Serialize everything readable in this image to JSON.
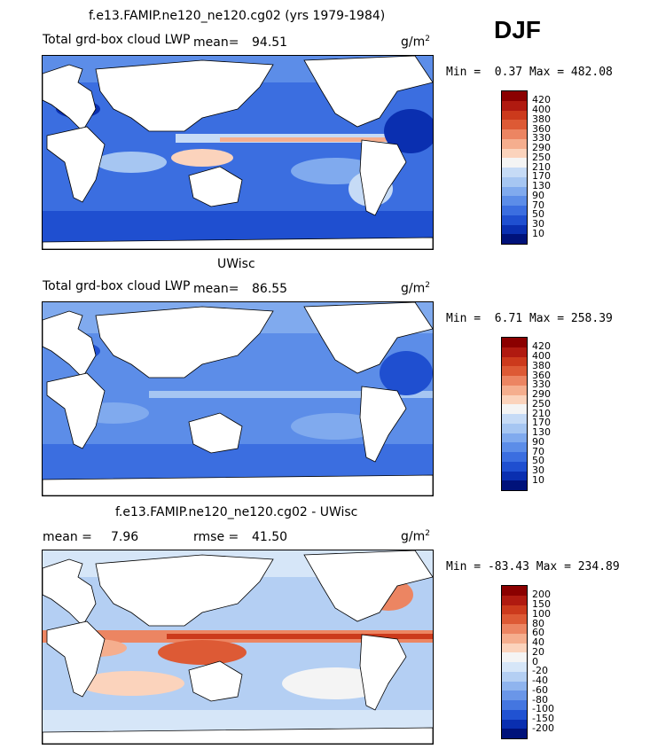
{
  "season": "DJF",
  "units_base": "g/m",
  "units_exp": "2",
  "panels": [
    {
      "title": "f.e13.FAMIP.ne120_ne120.cg02 (yrs 1979-1984)",
      "variable": "Total grd-box cloud LWP",
      "mean_label": "mean=",
      "mean": "94.51",
      "min_label": "Min =",
      "min": "0.37",
      "max_label": "Max =",
      "max": "482.08",
      "levels": [
        "420",
        "400",
        "380",
        "360",
        "330",
        "290",
        "250",
        "210",
        "170",
        "130",
        "90",
        "70",
        "50",
        "30",
        "10"
      ],
      "colors": [
        "#8b0000",
        "#b01a10",
        "#cc3a1c",
        "#dd5a35",
        "#ec8562",
        "#f5ae8e",
        "#fbd3bc",
        "#f4f4f4",
        "#c6dbf6",
        "#a6c6f2",
        "#80aaee",
        "#5c8de8",
        "#3b6ee0",
        "#1f4fd0",
        "#0a2fb0",
        "#00127a"
      ]
    },
    {
      "title": "UWisc",
      "variable": "Total grd-box cloud LWP",
      "mean_label": "mean=",
      "mean": "86.55",
      "min_label": "Min =",
      "min": "6.71",
      "max_label": "Max =",
      "max": "258.39",
      "levels": [
        "420",
        "400",
        "380",
        "360",
        "330",
        "290",
        "250",
        "210",
        "170",
        "130",
        "90",
        "70",
        "50",
        "30",
        "10"
      ],
      "colors": [
        "#8b0000",
        "#b01a10",
        "#cc3a1c",
        "#dd5a35",
        "#ec8562",
        "#f5ae8e",
        "#fbd3bc",
        "#f4f4f4",
        "#c6dbf6",
        "#a6c6f2",
        "#80aaee",
        "#5c8de8",
        "#3b6ee0",
        "#1f4fd0",
        "#0a2fb0",
        "#00127a"
      ]
    },
    {
      "title": "f.e13.FAMIP.ne120_ne120.cg02 - UWisc",
      "mean_label": "mean =",
      "mean": "7.96",
      "rmse_label": "rmse =",
      "rmse": "41.50",
      "min_label": "Min =",
      "min": "-83.43",
      "max_label": "Max =",
      "max": "234.89",
      "levels": [
        "200",
        "150",
        "100",
        "80",
        "60",
        "40",
        "20",
        "0",
        "-20",
        "-40",
        "-60",
        "-80",
        "-100",
        "-150",
        "-200"
      ],
      "colors": [
        "#8b0000",
        "#b01a10",
        "#cc3a1c",
        "#dd5a35",
        "#ec8562",
        "#f5ae8e",
        "#fbd3bc",
        "#f4f4f4",
        "#d6e6f8",
        "#b4cff3",
        "#8fb4ee",
        "#6a96e8",
        "#4476e0",
        "#2052d2",
        "#0a2fb0",
        "#00127a"
      ]
    }
  ]
}
